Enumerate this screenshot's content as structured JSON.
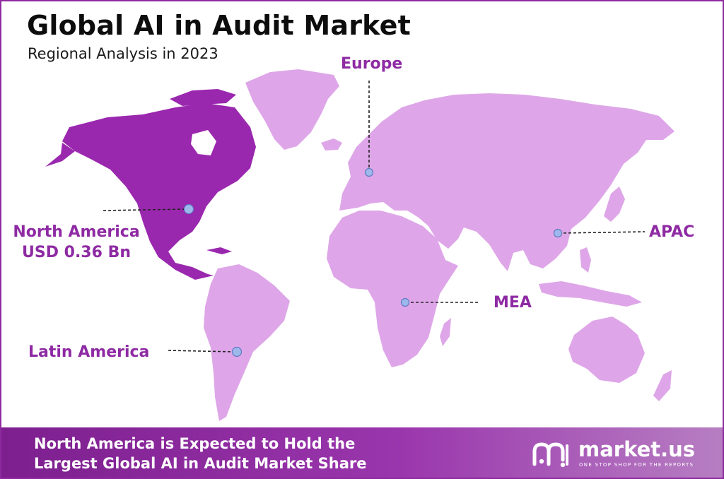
{
  "header": {
    "title": "Global AI in Audit Market",
    "subtitle": "Regional Analysis in 2023"
  },
  "colors": {
    "highlight_region": "#9a28ae",
    "base_land": "#dea6e8",
    "label_text": "#8e2aa3",
    "marker_fill": "#9fb8ec",
    "marker_stroke": "#5f79c4",
    "footer_start": "#7d1f8e",
    "footer_end": "#b77fc2"
  },
  "regions": [
    {
      "id": "north-america",
      "name": "North America",
      "value": "USD 0.36 Bn",
      "highlighted": true
    },
    {
      "id": "europe",
      "name": "Europe",
      "value": "",
      "highlighted": false
    },
    {
      "id": "apac",
      "name": "APAC",
      "value": "",
      "highlighted": false
    },
    {
      "id": "mea",
      "name": "MEA",
      "value": "",
      "highlighted": false
    },
    {
      "id": "latin-america",
      "name": "Latin America",
      "value": "",
      "highlighted": false
    }
  ],
  "footer": {
    "line1": "North America is Expected to Hold the",
    "line2": "Largest Global AI in Audit Market Share",
    "brand_name": "market.us",
    "brand_tagline": "ONE STOP SHOP FOR THE REPORTS",
    "brand_icon": "market-us-logo-icon"
  }
}
